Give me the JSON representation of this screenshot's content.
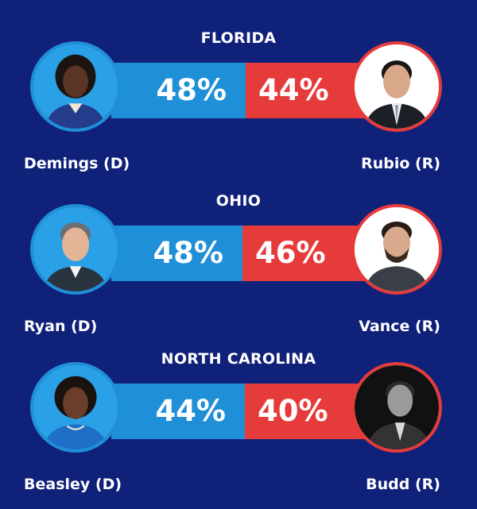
{
  "colors": {
    "background": "#10217a",
    "democrat": "#1f8fd8",
    "republican": "#e63b3b",
    "text": "#ffffff"
  },
  "chart_data": [
    {
      "type": "bar",
      "title": "FLORIDA",
      "series": [
        {
          "name": "Demings (D)",
          "party": "D",
          "value": 48,
          "label": "48%"
        },
        {
          "name": "Rubio (R)",
          "party": "R",
          "value": 44,
          "label": "44%"
        }
      ]
    },
    {
      "type": "bar",
      "title": "OHIO",
      "series": [
        {
          "name": "Ryan (D)",
          "party": "D",
          "value": 48,
          "label": "48%"
        },
        {
          "name": "Vance (R)",
          "party": "R",
          "value": 46,
          "label": "46%"
        }
      ]
    },
    {
      "type": "bar",
      "title": "NORTH CAROLINA",
      "series": [
        {
          "name": "Beasley (D)",
          "party": "D",
          "value": 44,
          "label": "44%"
        },
        {
          "name": "Budd (R)",
          "party": "R",
          "value": 40,
          "label": "40%"
        }
      ]
    }
  ]
}
